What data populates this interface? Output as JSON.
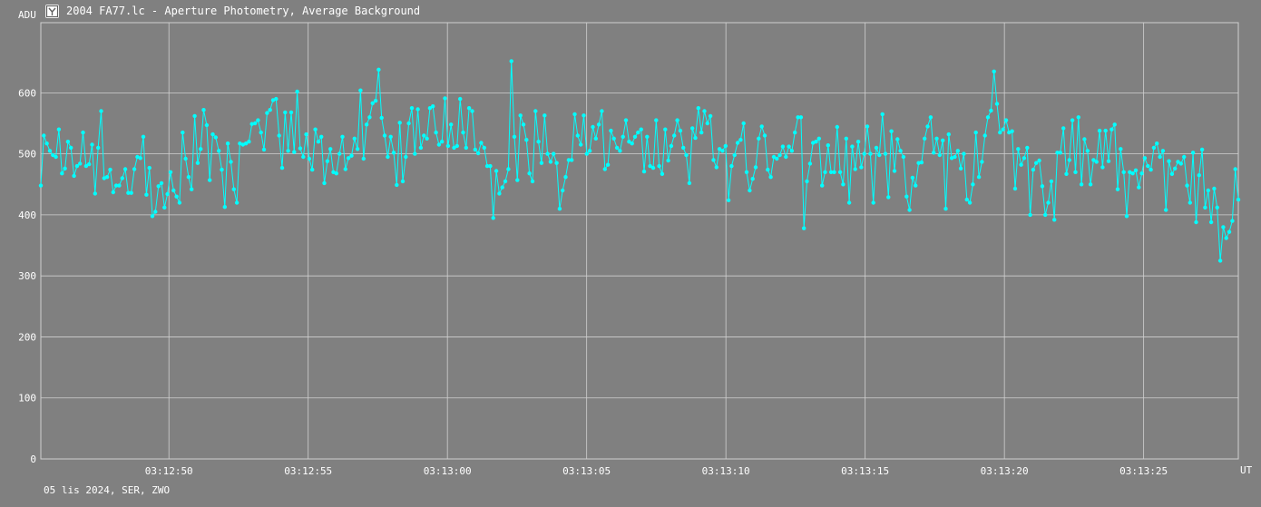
{
  "window": {
    "title": "2004 FA77.lc - Aperture Photometry, Average Background",
    "footer": "05 lis 2024, SER, ZWO"
  },
  "colors": {
    "background": "#808080",
    "grid": "#d0d0d0",
    "series": "#00ffff"
  },
  "chart_data": {
    "type": "line",
    "ylabel": "ADU",
    "xlabel": "UT",
    "ylim": [
      0,
      715
    ],
    "xlim": [
      0,
      430
    ],
    "yticks": [
      0,
      100,
      200,
      300,
      400,
      500,
      600
    ],
    "xticks": [
      {
        "pos": 46,
        "label": "03:12:50"
      },
      {
        "pos": 96,
        "label": "03:12:55"
      },
      {
        "pos": 146,
        "label": "03:13:00"
      },
      {
        "pos": 196,
        "label": "03:13:05"
      },
      {
        "pos": 246,
        "label": "03:13:10"
      },
      {
        "pos": 296,
        "label": "03:13:15"
      },
      {
        "pos": 346,
        "label": "03:13:20"
      },
      {
        "pos": 396,
        "label": "03:13:25"
      },
      {
        "pos": 446,
        "label": ""
      }
    ],
    "grid": true,
    "series": [
      {
        "values": [
          448,
          530,
          517,
          505,
          498,
          495,
          540,
          468,
          476,
          520,
          510,
          464,
          480,
          484,
          535,
          480,
          483,
          515,
          435,
          510,
          570,
          460,
          462,
          474,
          437,
          448,
          448,
          460,
          475,
          436,
          436,
          475,
          495,
          493,
          528,
          433,
          477,
          398,
          405,
          447,
          452,
          412,
          434,
          470,
          440,
          430,
          420,
          535,
          492,
          462,
          442,
          562,
          485,
          508,
          572,
          547,
          457,
          532,
          527,
          505,
          474,
          413,
          517,
          487,
          442,
          420,
          517,
          515,
          517,
          520,
          549,
          550,
          555,
          535,
          507,
          567,
          572,
          588,
          590,
          530,
          477,
          568,
          505,
          568,
          503,
          602,
          509,
          495,
          532,
          492,
          474,
          540,
          520,
          528,
          452,
          488,
          508,
          470,
          468,
          500,
          528,
          475,
          493,
          497,
          525,
          508,
          604,
          492,
          548,
          560,
          583,
          587,
          638,
          559,
          530,
          495,
          528,
          502,
          449,
          551,
          455,
          495,
          550,
          575,
          500,
          573,
          510,
          530,
          525,
          575,
          578,
          535,
          515,
          520,
          591,
          513,
          548,
          510,
          513,
          590,
          535,
          510,
          575,
          570,
          507,
          501,
          518,
          510,
          480,
          480,
          395,
          472,
          435,
          445,
          455,
          475,
          652,
          528,
          457,
          563,
          548,
          523,
          468,
          455,
          570,
          520,
          485,
          563,
          500,
          487,
          500,
          485,
          410,
          440,
          462,
          490,
          490,
          565,
          530,
          515,
          563,
          500,
          505,
          544,
          525,
          548,
          570,
          475,
          482,
          538,
          525,
          510,
          505,
          528,
          555,
          520,
          517,
          528,
          535,
          540,
          471,
          528,
          480,
          477,
          555,
          480,
          467,
          540,
          489,
          513,
          530,
          555,
          538,
          510,
          498,
          452,
          542,
          526,
          575,
          535,
          570,
          550,
          562,
          490,
          478,
          508,
          505,
          513,
          424,
          480,
          498,
          518,
          523,
          550,
          470,
          440,
          459,
          478,
          525,
          545,
          530,
          474,
          462,
          495,
          492,
          498,
          512,
          495,
          512,
          505,
          535,
          560,
          560,
          378,
          455,
          484,
          518,
          520,
          525,
          448,
          470,
          514,
          470,
          470,
          544,
          470,
          450,
          525,
          420,
          512,
          475,
          520,
          478,
          500,
          545,
          500,
          420,
          510,
          498,
          565,
          500,
          429,
          537,
          472,
          524,
          505,
          495,
          430,
          408,
          461,
          448,
          485,
          486,
          525,
          545,
          560,
          502,
          525,
          498,
          522,
          410,
          532,
          493,
          495,
          505,
          476,
          500,
          425,
          420,
          450,
          535,
          462,
          487,
          530,
          560,
          571,
          635,
          582,
          535,
          540,
          555,
          535,
          537,
          443,
          508,
          482,
          493,
          510,
          400,
          474,
          485,
          489,
          447,
          400,
          420,
          455,
          392,
          502,
          502,
          542,
          467,
          490,
          555,
          470,
          560,
          450,
          524,
          505,
          450,
          490,
          487,
          538,
          478,
          538,
          488,
          540,
          548,
          442,
          508,
          470,
          398,
          470,
          468,
          473,
          445,
          468,
          493,
          480,
          474,
          510,
          517,
          495,
          505,
          408,
          488,
          467,
          476,
          487,
          484,
          495,
          448,
          420,
          502,
          388,
          465,
          507,
          412,
          440,
          388,
          443,
          412,
          325,
          380,
          362,
          372,
          390,
          475,
          425
        ]
      }
    ]
  }
}
